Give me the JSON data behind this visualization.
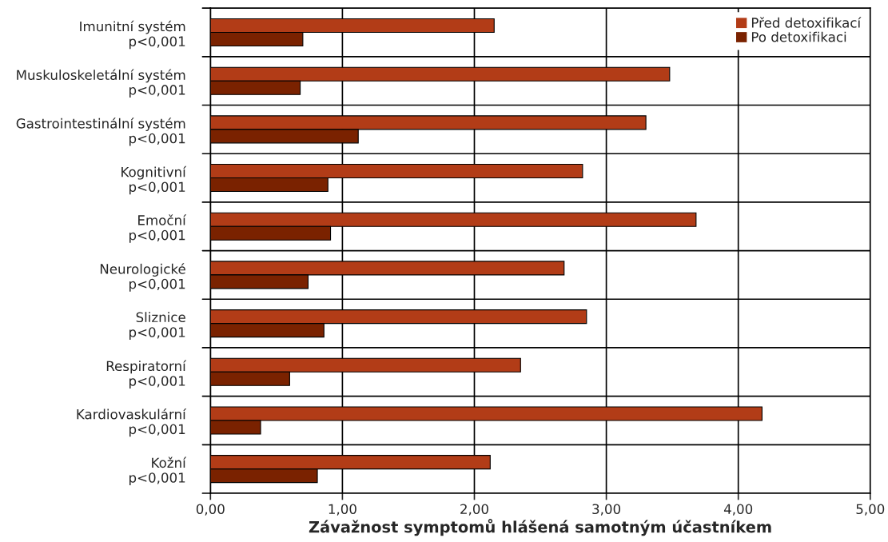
{
  "chart_data": {
    "type": "bar",
    "orientation": "horizontal",
    "xlabel": "Závažnost symptomů hlášená samotným účastníkem",
    "categories": [
      "Imunitní systém\np<0,001",
      "Muskuloskeletální systém\np<0,001",
      "Gastrointestinální systém\np<0,001",
      "Kognitivní\np<0,001",
      "Emoční\np<0,001",
      "Neurologické\np<0,001",
      "Sliznice\np<0,001",
      "Respiratorní\np<0,001",
      "Kardiovaskulární\np<0,001",
      "Kožní\np<0,001"
    ],
    "series": [
      {
        "name": "Před detoxifikací",
        "color": "#b23c17",
        "values": [
          2.15,
          3.48,
          3.3,
          2.82,
          3.68,
          2.68,
          2.85,
          2.35,
          4.18,
          2.12
        ]
      },
      {
        "name": "Po detoxifikaci",
        "color": "#7a2200",
        "values": [
          0.7,
          0.68,
          1.12,
          0.89,
          0.91,
          0.74,
          0.86,
          0.6,
          0.38,
          0.81
        ]
      }
    ],
    "xlim": [
      0,
      5
    ],
    "xticks": [
      {
        "value": 0,
        "label": "0,00"
      },
      {
        "value": 1,
        "label": "1,00"
      },
      {
        "value": 2,
        "label": "2,00"
      },
      {
        "value": 3,
        "label": "3,00"
      },
      {
        "value": 4,
        "label": "4,00"
      },
      {
        "value": 5,
        "label": "5,00"
      }
    ],
    "grid": true,
    "legend": "top right"
  }
}
